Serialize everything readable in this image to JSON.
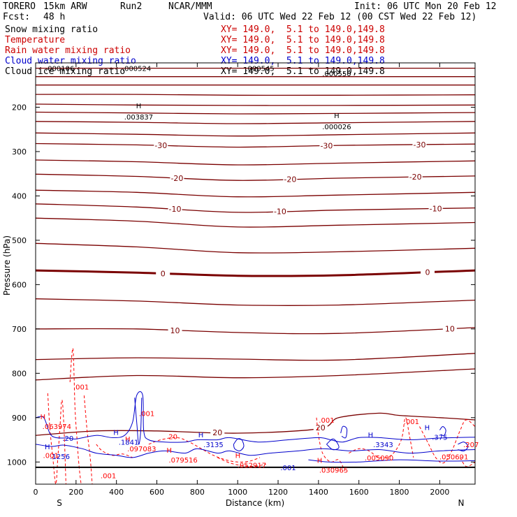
{
  "header": {
    "model": "TORERO",
    "resolution": "15km ARW",
    "run": "Run2",
    "center": "NCAR/MMM",
    "init": "Init: 06 UTC Mon 20 Feb 12",
    "fcst_label": "Fcst:",
    "fcst_value": "48 h",
    "valid": "Valid: 06 UTC Wed 22 Feb 12 (00 CST Wed 22 Feb 12)"
  },
  "legend": [
    {
      "name": "Snow mixing ratio",
      "xy": "XY= 149.0,  5.1 to 149.0,149.8",
      "color": "#000000"
    },
    {
      "name": "Temperature",
      "xy": "XY= 149.0,  5.1 to 149.0,149.8",
      "color": "#cc0000"
    },
    {
      "name": "Rain water mixing ratio",
      "xy": "XY= 149.0,  5.1 to 149.0,149.8",
      "color": "#cc0000"
    },
    {
      "name": "Cloud water mixing ratio",
      "xy": "XY= 149.0,  5.1 to 149.0,149.8",
      "color": "#0000cc"
    },
    {
      "name": "Cloud ice mixing ratio",
      "xy": "XY= 149.0,  5.1 to 149.0,149.8",
      "color": "#000000"
    }
  ],
  "colors": {
    "temperature": "#7a0000",
    "freezing": "#7a0000",
    "rain": "#ff0000",
    "cloud_water": "#0000cc",
    "ground": "#000000",
    "axes": "#000000"
  },
  "chart_data": {
    "type": "cross-section contour",
    "xlabel": "Distance (km)",
    "ylabel": "Pressure (hPa)",
    "xlim": [
      0,
      2175
    ],
    "ylim": [
      1050,
      100
    ],
    "x_ticks": [
      0,
      200,
      400,
      600,
      800,
      1000,
      1200,
      1400,
      1600,
      1800,
      2000
    ],
    "y_ticks": [
      200,
      300,
      400,
      500,
      600,
      700,
      800,
      900,
      1000
    ],
    "x_endpoints": {
      "left": "S",
      "right": "N"
    },
    "temperature_contours": [
      {
        "x": [
          0,
          500,
          1000,
          1500,
          2175
        ],
        "p": [
          112,
          112,
          112,
          112,
          112
        ]
      },
      {
        "x": [
          0,
          500,
          1000,
          1500,
          2175
        ],
        "p": [
          131,
          131,
          131,
          131,
          131
        ]
      },
      {
        "x": [
          0,
          500,
          1000,
          1500,
          2175
        ],
        "p": [
          150,
          150,
          150,
          150,
          150
        ]
      },
      {
        "x": [
          0,
          500,
          1000,
          1500,
          2175
        ],
        "p": [
          171,
          171,
          173,
          173,
          172
        ]
      },
      {
        "x": [
          0,
          500,
          1000,
          1500,
          2175
        ],
        "p": [
          193,
          195,
          196,
          196,
          195
        ]
      },
      {
        "x": [
          0,
          500,
          1000,
          1500,
          2175
        ],
        "p": [
          211,
          213,
          215,
          214,
          212
        ]
      },
      {
        "x": [
          0,
          500,
          1000,
          1500,
          2175
        ],
        "p": [
          232,
          234,
          237,
          235,
          232
        ]
      },
      {
        "x": [
          0,
          500,
          1000,
          1500,
          2175
        ],
        "p": [
          258,
          261,
          265,
          262,
          258
        ]
      },
      {
        "x": [
          0,
          500,
          1000,
          1500,
          2175
        ],
        "p": [
          282,
          285,
          290,
          286,
          283
        ],
        "label": "-30",
        "label_x": [
          620,
          1440,
          1900
        ]
      },
      {
        "x": [
          0,
          500,
          1000,
          1500,
          2175
        ],
        "p": [
          319,
          323,
          330,
          326,
          321
        ]
      },
      {
        "x": [
          0,
          500,
          1000,
          1500,
          2175
        ],
        "p": [
          351,
          356,
          365,
          360,
          355
        ],
        "label": "-20",
        "label_x": [
          700,
          1260,
          1880
        ]
      },
      {
        "x": [
          0,
          500,
          1000,
          1500,
          2175
        ],
        "p": [
          387,
          392,
          402,
          398,
          392
        ]
      },
      {
        "x": [
          0,
          500,
          1000,
          1500,
          2175
        ],
        "p": [
          418,
          425,
          437,
          432,
          427
        ],
        "label": "-10",
        "label_x": [
          690,
          1210,
          1980
        ]
      },
      {
        "x": [
          0,
          500,
          1000,
          1500,
          2175
        ],
        "p": [
          450,
          457,
          470,
          466,
          460
        ]
      },
      {
        "x": [
          0,
          500,
          1000,
          1500,
          2175
        ],
        "p": [
          507,
          515,
          528,
          526,
          518
        ]
      },
      {
        "x": [
          0,
          500,
          1000,
          1500,
          2175
        ],
        "p": [
          568,
          573,
          580,
          579,
          568
        ],
        "label": "0",
        "label_x": [
          630,
          1940
        ],
        "bold": true
      },
      {
        "x": [
          0,
          500,
          1000,
          1500,
          2175
        ],
        "p": [
          632,
          637,
          646,
          646,
          635
        ]
      },
      {
        "x": [
          0,
          500,
          1000,
          1500,
          2175
        ],
        "p": [
          700,
          700,
          708,
          710,
          697
        ],
        "label": "10",
        "label_x": [
          690,
          2050
        ]
      },
      {
        "x": [
          0,
          500,
          1000,
          1500,
          2175
        ],
        "p": [
          769,
          765,
          768,
          770,
          755
        ]
      },
      {
        "x": [
          0,
          500,
          1000,
          1500,
          2175
        ],
        "p": [
          815,
          805,
          810,
          805,
          790
        ]
      },
      {
        "x": [
          0,
          300,
          600,
          1000,
          1400,
          1500,
          1700,
          1800,
          2000,
          2175
        ],
        "p": [
          940,
          930,
          930,
          935,
          925,
          900,
          890,
          895,
          900,
          905
        ],
        "label": "20",
        "label_x": [
          900,
          1410
        ]
      }
    ],
    "maxima_labels": [
      {
        "x": 120,
        "p": 112,
        "text": ".000106"
      },
      {
        "x": 500,
        "p": 112,
        "text": ".000524"
      },
      {
        "x": 1110,
        "p": 112,
        "text": ".000545"
      },
      {
        "x": 1490,
        "p": 124,
        "text": ".000550"
      },
      {
        "x": 510,
        "p": 221,
        "text": ".003837",
        "mark": "H"
      },
      {
        "x": 1490,
        "p": 243,
        "text": ".000026",
        "mark": "H"
      }
    ],
    "rain_labels": [
      {
        "x": 105,
        "p": 919,
        "text": ".063974",
        "mark": "H"
      },
      {
        "x": 75,
        "p": 985,
        "text": ".001"
      },
      {
        "x": 225,
        "p": 830,
        "text": ".001"
      },
      {
        "x": 550,
        "p": 890,
        "text": ".001"
      },
      {
        "x": 525,
        "p": 970,
        "text": ".097083",
        "mark": "H"
      },
      {
        "x": 730,
        "p": 995,
        "text": ".079516",
        "mark": "H"
      },
      {
        "x": 1070,
        "p": 1007,
        "text": ".052917",
        "mark": "H"
      },
      {
        "x": 1440,
        "p": 905,
        "text": ".001"
      },
      {
        "x": 1475,
        "p": 1018,
        "text": ".030965",
        "mark": "H"
      },
      {
        "x": 1700,
        "p": 990,
        "text": ".005090"
      },
      {
        "x": 1860,
        "p": 908,
        "text": ".001"
      },
      {
        "x": 2070,
        "p": 988,
        "text": ".050691"
      },
      {
        "x": 360,
        "p": 1030,
        "text": ".001"
      },
      {
        "x": 2155,
        "p": 960,
        "text": ".207"
      },
      {
        "x": 680,
        "p": 942,
        "text": "20"
      }
    ],
    "cloud_labels": [
      {
        "x": 160,
        "p": 946,
        "text": ".20"
      },
      {
        "x": 120,
        "p": 987,
        "text": ".1256",
        "mark": "H"
      },
      {
        "x": 460,
        "p": 955,
        "text": ".1841",
        "mark": "H"
      },
      {
        "x": 880,
        "p": 960,
        "text": ".3135",
        "mark": "H"
      },
      {
        "x": 1720,
        "p": 960,
        "text": ".3343",
        "mark": "H"
      },
      {
        "x": 2000,
        "p": 944,
        "text": ".375",
        "mark": "H"
      },
      {
        "x": 1250,
        "p": 1012,
        "text": ".001"
      }
    ]
  }
}
